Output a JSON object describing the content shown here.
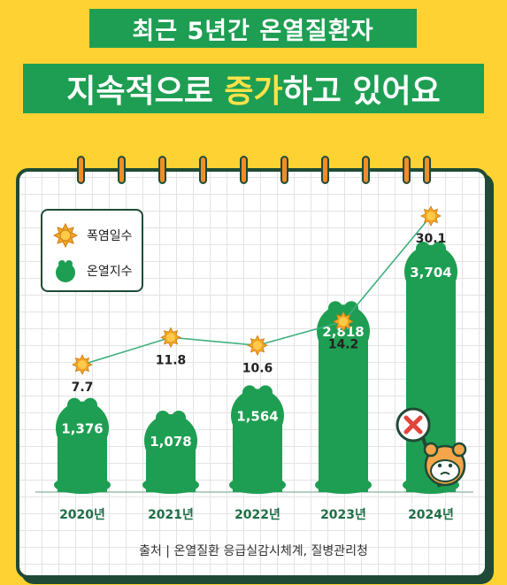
{
  "title": {
    "line1": "최근 5년간 온열질환자",
    "line2_prefix": "지속적으로 ",
    "line2_highlight": "증가",
    "line2_suffix": "하고 있어요"
  },
  "legend": {
    "heat_days": "폭염일수",
    "patients": "온열지수"
  },
  "source": "출처 | 온열질환 응급실감시체계, 질병관리청",
  "colors": {
    "background": "#FFD233",
    "green": "#1E9E52",
    "sun": "#F5A623",
    "line": "#3FAF7C"
  },
  "chart_data": {
    "type": "bar",
    "categories": [
      "2020년",
      "2021년",
      "2022년",
      "2023년",
      "2024년"
    ],
    "series": [
      {
        "name": "온열지수",
        "type": "bar",
        "values": [
          1376,
          1078,
          1564,
          2818,
          3704
        ],
        "labels": [
          "1,376",
          "1,078",
          "1,564",
          "2,818",
          "3,704"
        ]
      },
      {
        "name": "폭염일수",
        "type": "line",
        "values": [
          7.7,
          11.8,
          10.6,
          14.2,
          30.1
        ],
        "labels": [
          "7.7",
          "11.8",
          "10.6",
          "14.2",
          "30.1"
        ]
      }
    ],
    "title": "",
    "xlabel": "",
    "ylabel": "",
    "legend_position": "top-left"
  }
}
